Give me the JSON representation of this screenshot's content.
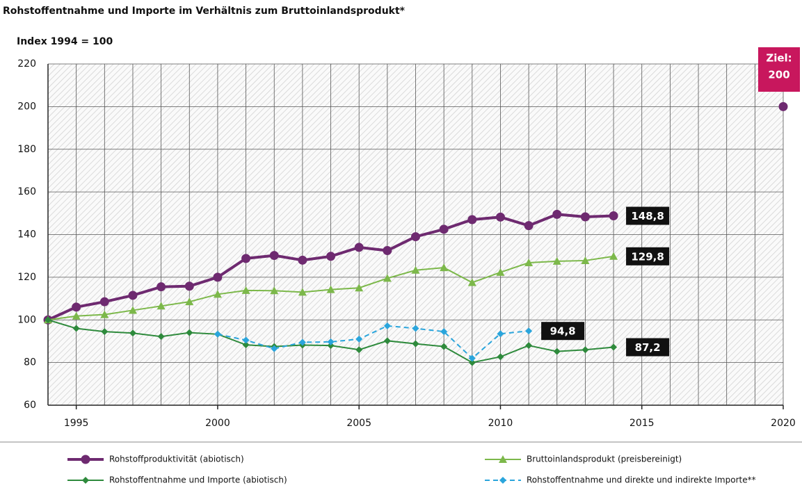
{
  "chart_data": {
    "type": "line",
    "title": "Rohstoffentnahme und Importe im Verhältnis zum Bruttoinlandsprodukt*",
    "subtitle": "Index 1994 = 100",
    "x": [
      1994,
      1995,
      1996,
      1997,
      1998,
      1999,
      2000,
      2001,
      2002,
      2003,
      2004,
      2005,
      2006,
      2007,
      2008,
      2009,
      2010,
      2011,
      2012,
      2013,
      2014
    ],
    "xlim": [
      1994,
      2020
    ],
    "xticks": [
      1995,
      2000,
      2005,
      2010,
      2015,
      2020
    ],
    "ylim": [
      60,
      220
    ],
    "yticks": [
      60,
      80,
      100,
      120,
      140,
      160,
      180,
      200,
      220
    ],
    "grid": true,
    "legend": "bottom",
    "series": [
      {
        "name": "Rohstoffproduktivität (abiotisch)",
        "color": "#6e2a70",
        "marker": "circle",
        "dashed": false,
        "values": [
          100,
          106,
          108.5,
          111.5,
          115.5,
          115.8,
          120,
          128.8,
          130.2,
          128,
          129.8,
          134,
          132.5,
          139,
          142.5,
          147,
          148.2,
          144.2,
          149.5,
          148.3,
          148.8
        ],
        "value_labels": [
          null,
          null,
          null,
          null,
          null,
          null,
          null,
          null,
          null,
          null,
          null,
          null,
          null,
          null,
          null,
          null,
          null,
          null,
          null,
          null,
          "148,8"
        ]
      },
      {
        "name": "Bruttoinlandsprodukt (preisbereinigt)",
        "color": "#7cb84a",
        "marker": "triangle",
        "dashed": false,
        "values": [
          100,
          101.8,
          102.5,
          104.5,
          106.5,
          108.5,
          112,
          113.8,
          113.7,
          113,
          114.2,
          115,
          119.5,
          123.3,
          124.5,
          117.5,
          122.3,
          126.8,
          127.5,
          127.8,
          129.8
        ],
        "value_labels": [
          null,
          null,
          null,
          null,
          null,
          null,
          null,
          null,
          null,
          null,
          null,
          null,
          null,
          null,
          null,
          null,
          null,
          null,
          null,
          null,
          "129,8"
        ]
      },
      {
        "name": "Rohstoffentnahme und Importe (abiotisch)",
        "color": "#2e8a3c",
        "marker": "diamond",
        "dashed": false,
        "values": [
          100,
          96,
          94.5,
          93.8,
          92.2,
          94,
          93.3,
          88.3,
          87.5,
          88.2,
          88,
          86,
          90.2,
          88.8,
          87.5,
          80,
          82.7,
          88,
          85.2,
          86,
          87.2
        ],
        "value_labels": [
          null,
          null,
          null,
          null,
          null,
          null,
          null,
          null,
          null,
          null,
          null,
          null,
          null,
          null,
          null,
          null,
          null,
          null,
          null,
          null,
          "87,2"
        ]
      },
      {
        "name": "Rohstoffentnahme und direkte und indirekte Importe**",
        "color": "#2aa5dc",
        "marker": "diamond",
        "dashed": true,
        "values": [
          null,
          null,
          null,
          null,
          null,
          null,
          93.3,
          90.5,
          86.5,
          89.5,
          89.7,
          91,
          97.2,
          96,
          94.5,
          82,
          93.5,
          94.8,
          null,
          null,
          null
        ],
        "value_labels": [
          null,
          null,
          null,
          null,
          null,
          null,
          null,
          null,
          null,
          null,
          null,
          null,
          null,
          null,
          null,
          null,
          null,
          "94,8",
          null,
          null,
          null
        ]
      }
    ],
    "target": {
      "x": 2020,
      "value": 200,
      "color": "#c8175d",
      "label_lines": [
        "Ziel:",
        "200"
      ]
    }
  }
}
